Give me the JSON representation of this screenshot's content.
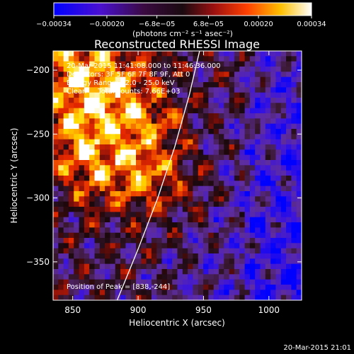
{
  "chart_data": {
    "type": "heatmap",
    "title": "Reconstructed RHESSI Image",
    "xlabel": "Heliocentric X (arcsec)",
    "ylabel": "Heliocentric Y (arcsec)",
    "xlim": [
      835,
      1025
    ],
    "ylim": [
      -380,
      -185
    ],
    "x_ticks": [
      850,
      900,
      950,
      1000
    ],
    "y_ticks": [
      -350,
      -300,
      -250,
      -200
    ],
    "x_tick_labels": [
      "850",
      "900",
      "950",
      "1000"
    ],
    "y_tick_labels": [
      "−350",
      "−300",
      "−250",
      "−200"
    ],
    "colorbar": {
      "range": [
        -0.00034,
        0.00034
      ],
      "ticks": [
        -0.00034,
        -0.0002,
        -6.8e-05,
        6.8e-05,
        0.0002,
        0.00034
      ],
      "tick_labels": [
        "−0.00034",
        "−0.00020",
        "−6.8e−05",
        "6.8e−05",
        "0.00020",
        "0.00034"
      ],
      "units_label": "(photons cm⁻² s⁻¹ asec⁻²)",
      "colors": [
        "#0000ff",
        "#5a12b0",
        "#1a0a10",
        "#aa1010",
        "#ff7000",
        "#ffd000",
        "#ffffff"
      ]
    },
    "annotations": [
      "20-Mar-2015 11:41:08.000 to 11:46:36.000",
      "Detectors: 3F 5F 6F 7F 8F 9F, Att 0",
      "Energy Range: 12.0 - 25.0 keV",
      "Clean     Total counts: 7.66E+03"
    ],
    "peak_label": "Position of Peak = [838,-244]",
    "peak_position": [
      838,
      -244
    ],
    "limb_curve": [
      [
        884,
        -380
      ],
      [
        900,
        -340
      ],
      [
        915,
        -300
      ],
      [
        928,
        -260
      ],
      [
        939,
        -220
      ],
      [
        947,
        -185
      ]
    ]
  },
  "footer_timestamp": "20-Mar-2015 21:01"
}
